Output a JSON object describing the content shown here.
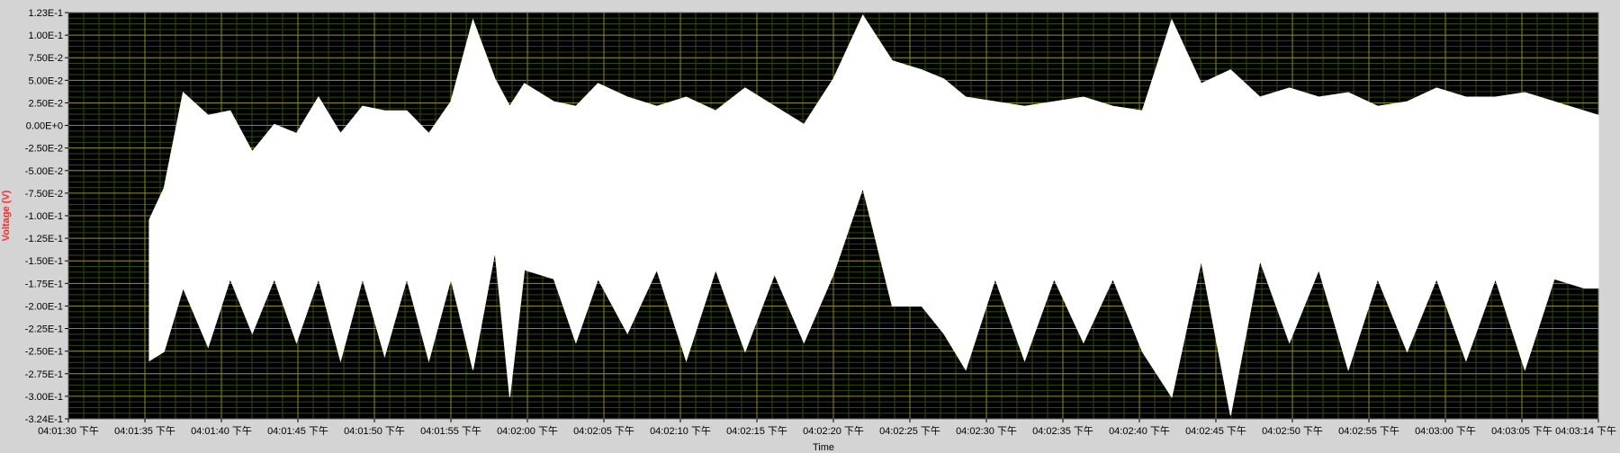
{
  "chart_data": {
    "type": "line",
    "title": "",
    "xlabel": "Time",
    "ylabel": "Voltage (V)",
    "x_time_range": [
      "04:01:30",
      "04:03:14"
    ],
    "x_tick_labels": [
      "04:01:30 下午",
      "04:01:35 下午",
      "04:01:40 下午",
      "04:01:45 下午",
      "04:01:50 下午",
      "04:01:55 下午",
      "04:02:00 下午",
      "04:02:05 下午",
      "04:02:10 下午",
      "04:02:15 下午",
      "04:02:20 下午",
      "04:02:25 下午",
      "04:02:30 下午",
      "04:02:35 下午",
      "04:02:40 下午",
      "04:02:45 下午",
      "04:02:50 下午",
      "04:02:55 下午",
      "04:03:00 下午",
      "04:03:05 下午",
      "04:03:14 下午"
    ],
    "y_tick_labels": [
      "1.23E-1",
      "1.00E-1",
      "7.50E-2",
      "5.00E-2",
      "2.50E-2",
      "0.00E+0",
      "-2.50E-2",
      "-5.00E-2",
      "-7.50E-2",
      "-1.00E-1",
      "-1.25E-1",
      "-1.50E-1",
      "-1.75E-1",
      "-2.00E-1",
      "-2.25E-1",
      "-2.50E-1",
      "-2.75E-1",
      "-3.00E-1",
      "-3.24E-1"
    ],
    "ylim": [
      -0.324,
      0.123
    ],
    "grid": true,
    "series": [
      {
        "color": "#ffffff",
        "envelope_seconds_from_start": [
          5.5,
          6.5,
          7.8,
          9.5,
          11,
          12.5,
          14,
          15.5,
          17,
          18.5,
          20,
          21.5,
          23,
          24.5,
          26,
          27.5,
          29,
          30,
          31,
          33,
          34.5,
          36,
          38,
          40,
          42,
          44,
          46,
          48,
          50,
          52,
          54,
          56,
          58,
          59.5,
          61,
          63,
          65,
          67,
          69,
          71,
          73,
          75,
          77,
          79,
          81,
          83,
          85,
          87,
          89,
          91,
          93,
          95,
          97,
          99,
          101,
          103,
          104
        ],
        "upper_values": [
          -0.105,
          -0.07,
          0.035,
          0.01,
          0.015,
          -0.03,
          0.0,
          -0.01,
          0.03,
          -0.01,
          0.02,
          0.015,
          0.015,
          -0.01,
          0.025,
          0.115,
          0.05,
          0.02,
          0.045,
          0.025,
          0.02,
          0.045,
          0.03,
          0.02,
          0.03,
          0.015,
          0.04,
          0.02,
          0.0,
          0.05,
          0.12,
          0.07,
          0.06,
          0.05,
          0.03,
          0.025,
          0.02,
          0.025,
          0.03,
          0.02,
          0.015,
          0.115,
          0.045,
          0.06,
          0.03,
          0.04,
          0.03,
          0.035,
          0.02,
          0.025,
          0.04,
          0.03,
          0.03,
          0.035,
          0.025,
          0.015,
          0.01
        ],
        "lower_values": [
          -0.26,
          -0.25,
          -0.18,
          -0.245,
          -0.17,
          -0.23,
          -0.17,
          -0.24,
          -0.17,
          -0.26,
          -0.17,
          -0.255,
          -0.17,
          -0.26,
          -0.17,
          -0.27,
          -0.14,
          -0.3,
          -0.16,
          -0.17,
          -0.24,
          -0.17,
          -0.23,
          -0.16,
          -0.26,
          -0.16,
          -0.25,
          -0.165,
          -0.24,
          -0.165,
          -0.07,
          -0.2,
          -0.2,
          -0.23,
          -0.27,
          -0.17,
          -0.26,
          -0.17,
          -0.24,
          -0.17,
          -0.25,
          -0.3,
          -0.15,
          -0.32,
          -0.15,
          -0.24,
          -0.16,
          -0.27,
          -0.17,
          -0.25,
          -0.17,
          -0.26,
          -0.17,
          -0.27,
          -0.17,
          -0.18,
          -0.18
        ]
      }
    ]
  }
}
